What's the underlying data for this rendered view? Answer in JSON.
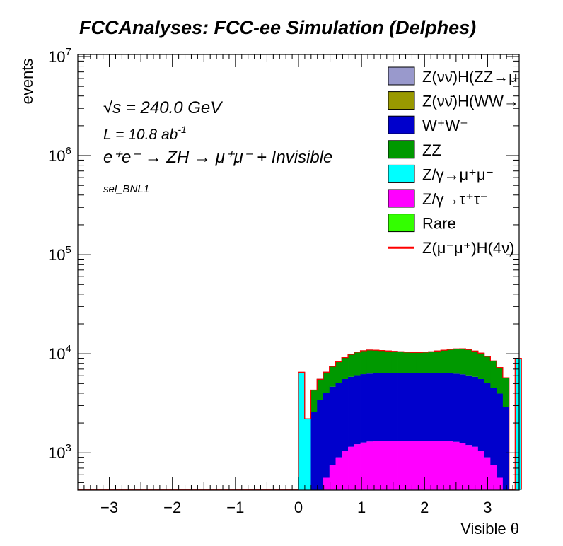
{
  "chart_data": {
    "type": "bar",
    "stacked": true,
    "title": "FCCAnalyses: FCC-ee Simulation (Delphes)",
    "xlabel": "Visible θ",
    "ylabel": "events",
    "xlim": [
      -3.5,
      3.5
    ],
    "ylim": [
      420,
      10500000
    ],
    "log_y": true,
    "grid": false,
    "legend_position": "top-right",
    "x_ticks": [
      "−3",
      "−2",
      "−1",
      "0",
      "1",
      "2",
      "3"
    ],
    "y_ticks": [
      {
        "base": "10",
        "exp": "3"
      },
      {
        "base": "10",
        "exp": "4"
      },
      {
        "base": "10",
        "exp": "5"
      },
      {
        "base": "10",
        "exp": "6"
      },
      {
        "base": "10",
        "exp": "7"
      }
    ],
    "annotations": {
      "sqrt_s": "√s = 240.0 GeV",
      "lumi_prefix": "L = 10.8 ab",
      "lumi_exp": "-1",
      "process": "e⁺e⁻ → ZH → μ⁺μ⁻ + Invisible",
      "selection": "sel_BNL1"
    },
    "bins": {
      "x_start": 0.0,
      "width": 0.0982,
      "stack_order": [
        "zgamma_tautau",
        "ww",
        "zz",
        "zgamma_mumu"
      ]
    },
    "series": [
      {
        "key": "zgamma_tautau",
        "name": "Z/γ→τ⁺τ⁻",
        "color": "#ff00ff",
        "values": [
          0,
          0,
          300,
          420,
          560,
          750,
          900,
          1050,
          1150,
          1220,
          1270,
          1300,
          1310,
          1320,
          1320,
          1320,
          1320,
          1320,
          1320,
          1320,
          1320,
          1320,
          1320,
          1320,
          1310,
          1290,
          1250,
          1200,
          1150,
          1050,
          900,
          750,
          560,
          420,
          0,
          0
        ]
      },
      {
        "key": "ww",
        "name": "W⁺W⁻",
        "color": "#0000cc",
        "values": [
          0,
          0,
          2300,
          3000,
          3500,
          3900,
          4200,
          4500,
          4700,
          4850,
          4950,
          5000,
          5050,
          5050,
          5050,
          5050,
          5050,
          5050,
          5050,
          5050,
          5050,
          5050,
          5050,
          5050,
          5050,
          5000,
          4950,
          4850,
          4700,
          4500,
          4200,
          3800,
          3400,
          2500,
          0,
          0
        ]
      },
      {
        "key": "zz",
        "name": "ZZ",
        "color": "#009900",
        "values": [
          0,
          0,
          1700,
          2100,
          2450,
          2800,
          3200,
          3600,
          4000,
          4300,
          4500,
          4600,
          4500,
          4400,
          4300,
          4200,
          4100,
          4000,
          3950,
          3950,
          4000,
          4100,
          4300,
          4500,
          4700,
          4900,
          5000,
          5000,
          4800,
          4600,
          4300,
          3900,
          3300,
          2800,
          0,
          0
        ]
      },
      {
        "key": "zgamma_mumu",
        "name": "Z/γ→μ⁺μ⁻",
        "color": "#00ffff",
        "values": [
          6500,
          2200,
          0,
          0,
          0,
          0,
          0,
          0,
          0,
          0,
          0,
          0,
          0,
          0,
          0,
          0,
          0,
          0,
          0,
          0,
          0,
          0,
          0,
          0,
          0,
          0,
          0,
          0,
          0,
          0,
          0,
          0,
          0,
          0,
          0,
          9000
        ]
      },
      {
        "key": "zh_zz_nunu",
        "name": "Z(νν̄)H(ZZ→μ⁺μ⁻ν⁺ν⁻)",
        "color": "#9999cc",
        "values": []
      },
      {
        "key": "zh_ww_nunu",
        "name": "Z(νν̄)H(WW→μ⁺νμ⁻ν̄)",
        "color": "#999900",
        "values": []
      },
      {
        "key": "rare",
        "name": "Rare",
        "color": "#33ff00",
        "values": []
      },
      {
        "key": "signal",
        "name": "Z(μ⁻μ⁺)H(4ν)",
        "color": "#ff0000",
        "line": true,
        "values": []
      }
    ],
    "legend_order": [
      "zh_zz_nunu",
      "zh_ww_nunu",
      "ww",
      "zz",
      "zgamma_mumu",
      "zgamma_tautau",
      "rare",
      "signal"
    ]
  }
}
